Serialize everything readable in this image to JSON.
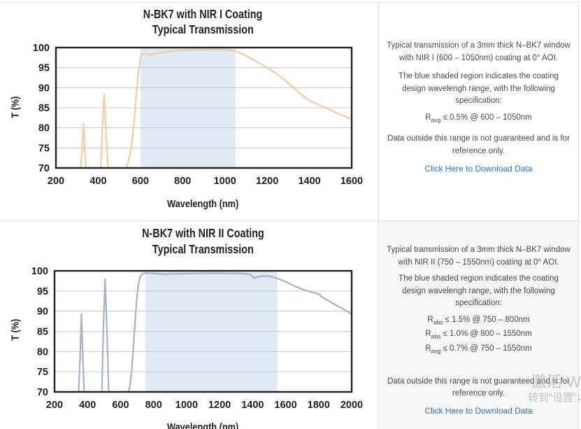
{
  "charts_meta": {
    "note": "transmission curves of N-BK7 windows with NIR coatings"
  },
  "chart_data": [
    {
      "type": "line",
      "title": "N-BK7 with NIR I Coating",
      "subtitle": "Typical Transmission",
      "xlabel": "Wavelength (nm)",
      "ylabel": "T (%)",
      "xlim": [
        200,
        1600
      ],
      "ylim": [
        70,
        100
      ],
      "x_ticks": [
        200,
        400,
        600,
        800,
        1000,
        1200,
        1400,
        1600
      ],
      "y_ticks": [
        70,
        75,
        80,
        85,
        90,
        95,
        100
      ],
      "grid": true,
      "shaded_region_nm": [
        600,
        1050
      ],
      "line_color": "#f5cba3",
      "region_color": "#dfeaf5",
      "grid_color": "#c8c8c8",
      "frame_color": "#231f20",
      "series": [
        {
          "name": "N-BK7 window, NIR I coating, 0 deg AOI",
          "points": [
            [
              316,
              69
            ],
            [
              323,
              74
            ],
            [
              330,
              81
            ],
            [
              337,
              74
            ],
            [
              344,
              69
            ],
            [
              411,
              69
            ],
            [
              419,
              79
            ],
            [
              428,
              88.3
            ],
            [
              437,
              79
            ],
            [
              447,
              69
            ],
            [
              521,
              69
            ],
            [
              536,
              70.5
            ],
            [
              549,
              73
            ],
            [
              560,
              76.5
            ],
            [
              571,
              82
            ],
            [
              581,
              88.5
            ],
            [
              590,
              93.5
            ],
            [
              598,
              96.8
            ],
            [
              606,
              98.4
            ],
            [
              622,
              98.4
            ],
            [
              640,
              98.2
            ],
            [
              658,
              98.3
            ],
            [
              682,
              98.6
            ],
            [
              712,
              98.9
            ],
            [
              752,
              99.15
            ],
            [
              810,
              99.3
            ],
            [
              870,
              99.4
            ],
            [
              930,
              99.45
            ],
            [
              990,
              99.45
            ],
            [
              1030,
              99.3
            ],
            [
              1062,
              98.9
            ],
            [
              1092,
              98.2
            ],
            [
              1122,
              97.3
            ],
            [
              1160,
              96.2
            ],
            [
              1200,
              95.0
            ],
            [
              1240,
              93.6
            ],
            [
              1280,
              92.0
            ],
            [
              1320,
              90.2
            ],
            [
              1360,
              88.4
            ],
            [
              1393,
              87.0
            ],
            [
              1405,
              86.7
            ],
            [
              1442,
              85.8
            ],
            [
              1482,
              84.9
            ],
            [
              1522,
              83.9
            ],
            [
              1562,
              83.0
            ],
            [
              1600,
              82.1
            ]
          ]
        }
      ]
    },
    {
      "type": "line",
      "title": "N-BK7 with NIR II Coating",
      "subtitle": "Typical Transmission",
      "xlabel": "Wavelength (nm)",
      "ylabel": "T (%)",
      "xlim": [
        200,
        2000
      ],
      "ylim": [
        70,
        100
      ],
      "x_ticks": [
        200,
        400,
        600,
        800,
        1000,
        1200,
        1400,
        1600,
        1800,
        2000
      ],
      "y_ticks": [
        70,
        75,
        80,
        85,
        90,
        95,
        100
      ],
      "grid": true,
      "shaded_region_nm": [
        750,
        1550
      ],
      "line_color": "#a8b2c7",
      "region_color": "#dfeaf5",
      "grid_color": "#c8c8c8",
      "frame_color": "#231f20",
      "series": [
        {
          "name": "N-BK7 window, NIR II coating, 0 deg AOI",
          "points": [
            [
              345,
              69
            ],
            [
              354,
              78
            ],
            [
              363,
              89.3
            ],
            [
              372,
              78
            ],
            [
              381,
              69
            ],
            [
              486,
              69
            ],
            [
              496,
              86
            ],
            [
              506,
              97.9
            ],
            [
              517,
              86
            ],
            [
              529,
              69
            ],
            [
              643,
              69
            ],
            [
              656,
              71.5
            ],
            [
              667,
              75
            ],
            [
              677,
              80.5
            ],
            [
              687,
              87
            ],
            [
              697,
              92.5
            ],
            [
              707,
              96.3
            ],
            [
              717,
              98.3
            ],
            [
              729,
              99.2
            ],
            [
              745,
              99.45
            ],
            [
              780,
              99.4
            ],
            [
              820,
              99.3
            ],
            [
              865,
              99.15
            ],
            [
              915,
              99.25
            ],
            [
              980,
              99.3
            ],
            [
              1050,
              99.35
            ],
            [
              1130,
              99.4
            ],
            [
              1210,
              99.4
            ],
            [
              1290,
              99.35
            ],
            [
              1350,
              99.3
            ],
            [
              1385,
              99.1
            ],
            [
              1402,
              98.6
            ],
            [
              1412,
              98.15
            ],
            [
              1425,
              98.45
            ],
            [
              1455,
              98.7
            ],
            [
              1495,
              98.7
            ],
            [
              1530,
              98.35
            ],
            [
              1565,
              97.9
            ],
            [
              1605,
              97.2
            ],
            [
              1645,
              96.4
            ],
            [
              1690,
              95.6
            ],
            [
              1735,
              95.0
            ],
            [
              1775,
              94.5
            ],
            [
              1805,
              94.2
            ],
            [
              1815,
              93.6
            ],
            [
              1855,
              92.7
            ],
            [
              1905,
              91.5
            ],
            [
              1955,
              90.4
            ],
            [
              2000,
              89.3
            ]
          ]
        }
      ]
    }
  ],
  "panels": [
    {
      "p1": "Typical transmission of a 3mm thick N–BK7 window with NIR I (600 – 1050nm) coating at 0° AOI.",
      "p2": "The blue shaded region indicates the coating design wavelengh range, with the following specification:",
      "specs": [
        {
          "base": "R",
          "sub": "avg",
          "rest": " ≤ 0.5% @ 600 – 1050nm"
        }
      ],
      "p3": "Data outside this range is not guaranteed and is for reference only.",
      "link": "Click Here to Download Data"
    },
    {
      "p1": "Typical transmission of a 3mm thick N–BK7 window with NIR II (750 – 1550nm) coating at 0° AOI.",
      "p2": "The blue shaded region indicates the coating design wavelengh range, with the following specification:",
      "specs": [
        {
          "base": "R",
          "sub": "abs",
          "rest": " ≤ 1.5% @ 750 – 800nm"
        },
        {
          "base": "R",
          "sub": "abs",
          "rest": " ≤ 1.0% @ 800 – 1550nm"
        },
        {
          "base": "R",
          "sub": "avg",
          "rest": " ≤ 0.7% @ 750 – 1550nm"
        }
      ],
      "p3": "Data outside this range is not guaranteed and is for reference only.",
      "link": "Click Here to Download Data"
    }
  ],
  "watermark": {
    "line1": "激活 Windows",
    "line2": "转到“设置”以激活 Windows。"
  },
  "colors": {
    "accent_link": "#2e74c8",
    "shaded_region": "#dfeaf5",
    "nir1_line": "#f5cba3",
    "nir2_line": "#a8b2c7",
    "panel_bg_bottom": "#f6f6f7",
    "divider": "#e5e5e5",
    "text": "#4b4b4b",
    "chart_text": "#231f20"
  }
}
